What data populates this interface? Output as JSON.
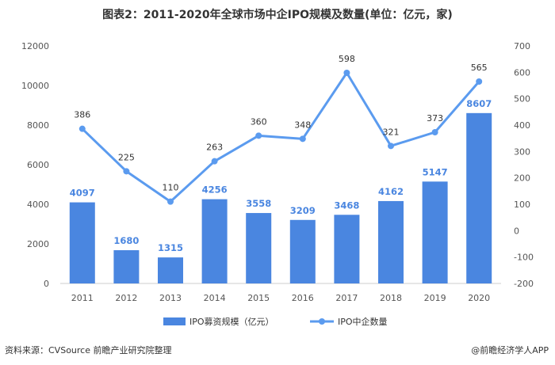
{
  "chart_data": {
    "type": "bar",
    "title": "图表2：2011-2020年全球市场中企IPO规模及数量(单位：亿元，家)",
    "categories": [
      "2011",
      "2012",
      "2013",
      "2014",
      "2015",
      "2016",
      "2017",
      "2018",
      "2019",
      "2020"
    ],
    "series": [
      {
        "name": "IPO募资规模（亿元）",
        "type": "bar",
        "axis": "left",
        "values": [
          4097,
          1680,
          1315,
          4256,
          3558,
          3209,
          3468,
          4162,
          5147,
          8607
        ]
      },
      {
        "name": "IPO中企数量",
        "type": "line",
        "axis": "right",
        "values": [
          386,
          225,
          110,
          263,
          360,
          348,
          598,
          321,
          373,
          565
        ]
      }
    ],
    "ylim_left": [
      0,
      12000
    ],
    "yticks_left": [
      "0",
      "2000",
      "4000",
      "6000",
      "8000",
      "10000",
      "12000"
    ],
    "ylim_right": [
      -200,
      700
    ],
    "yticks_right": [
      "-200",
      "-100",
      "0",
      "100",
      "200",
      "300",
      "400",
      "500",
      "600",
      "700"
    ],
    "grid": false,
    "legend_position": "bottom",
    "colors": {
      "bar": "#4a86e0",
      "line": "#5b9bef",
      "bar_label": "#4a86e0",
      "line_label": "#333333"
    }
  },
  "footer": {
    "source": "资料来源：CVSource 前瞻产业研究院整理",
    "brand": "@前瞻经济学人APP"
  }
}
